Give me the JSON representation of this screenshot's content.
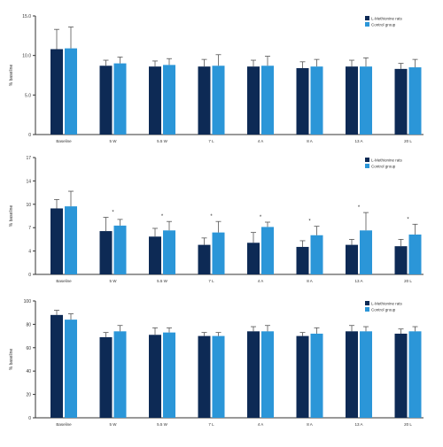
{
  "chart_data": [
    {
      "type": "bar",
      "ylabel": "% baseline",
      "ylim": [
        0,
        15
      ],
      "yticks": [
        "0",
        "5.0",
        "10.0",
        "15.0"
      ],
      "categories": [
        "Baseline",
        "5 W",
        "5.5 W",
        "7 L",
        "4 A",
        "8 A",
        "13 A",
        "20 L"
      ],
      "series": [
        {
          "name": "L-Methionine rats",
          "color": "#0d2a55",
          "values": [
            10.8,
            8.7,
            8.6,
            8.6,
            8.6,
            8.4,
            8.6,
            8.3
          ],
          "errors": [
            2.5,
            0.7,
            0.7,
            0.9,
            0.8,
            0.8,
            0.8,
            0.7
          ]
        },
        {
          "name": "Control group",
          "color": "#2b96d8",
          "values": [
            10.9,
            9.0,
            8.8,
            8.7,
            8.7,
            8.6,
            8.6,
            8.5
          ],
          "errors": [
            2.7,
            0.8,
            0.8,
            1.4,
            1.2,
            0.9,
            1.1,
            1.0
          ]
        }
      ],
      "legend": "top-right",
      "grid": false
    },
    {
      "type": "bar",
      "ylabel": "% baseline",
      "ylim": [
        0,
        17
      ],
      "yticks": [
        "0",
        "4",
        "7",
        "10",
        "14",
        "17"
      ],
      "categories": [
        "Baseline",
        "5 W",
        "5.5 W",
        "7 L",
        "4 A",
        "8 A",
        "13 A",
        "20 L"
      ],
      "series": [
        {
          "name": "L-Methionine rats",
          "color": "#0d2a55",
          "values": [
            9.6,
            6.3,
            5.5,
            4.3,
            4.6,
            4.0,
            4.3,
            4.1
          ],
          "errors": [
            1.3,
            2.0,
            1.2,
            1.0,
            1.5,
            0.9,
            0.8,
            1.0
          ]
        },
        {
          "name": "Control group",
          "color": "#2b96d8",
          "values": [
            9.9,
            7.1,
            6.4,
            6.1,
            6.9,
            5.7,
            6.4,
            5.8
          ],
          "errors": [
            2.2,
            0.9,
            1.3,
            1.6,
            0.7,
            1.3,
            2.6,
            1.5
          ]
        }
      ],
      "annotations": [
        "*",
        "*",
        "*",
        "*",
        "*",
        "*",
        "*"
      ],
      "legend": "top-right",
      "grid": false
    },
    {
      "type": "bar",
      "ylabel": "% baseline",
      "ylim": [
        0,
        100
      ],
      "yticks": [
        "0",
        "20",
        "40",
        "60",
        "80",
        "100"
      ],
      "categories": [
        "Baseline",
        "5 W",
        "5.5 W",
        "7 L",
        "4 A",
        "8 A",
        "13 A",
        "20 L"
      ],
      "series": [
        {
          "name": "L-Methionine rats",
          "color": "#0d2a55",
          "values": [
            88,
            69,
            71,
            70,
            74,
            70,
            74,
            72
          ],
          "errors": [
            4,
            4,
            6,
            3,
            4,
            3,
            5,
            4
          ]
        },
        {
          "name": "Control group",
          "color": "#2b96d8",
          "values": [
            84,
            74,
            73,
            70,
            74,
            72,
            74,
            74
          ],
          "errors": [
            5,
            5,
            4,
            3,
            5,
            5,
            4,
            4
          ]
        }
      ],
      "legend": "top-right",
      "grid": false
    }
  ]
}
